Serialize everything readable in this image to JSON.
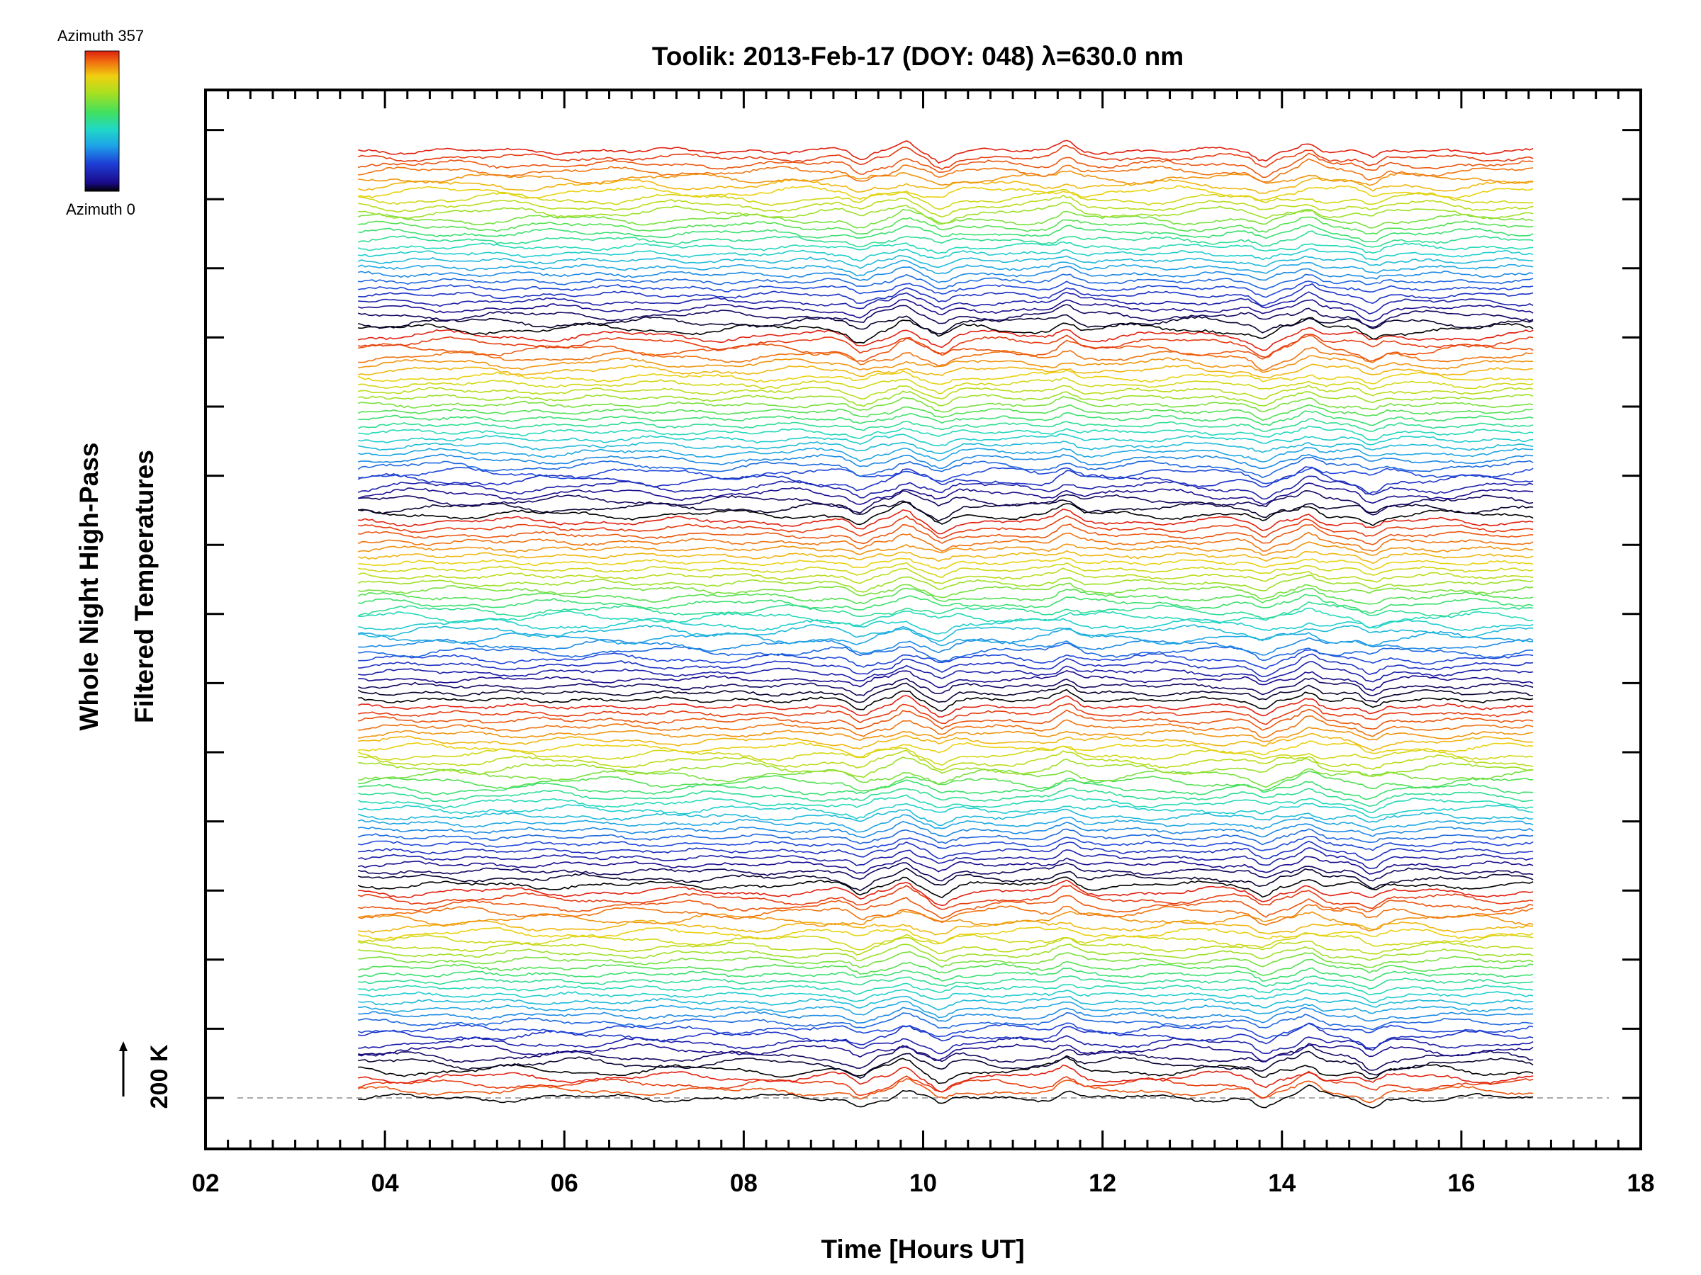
{
  "colors": {
    "background": "#ffffff",
    "axis": "#000000",
    "baseline": "#aaaaaa",
    "colormap": [
      "#000000",
      "#1a0a8a",
      "#1e40d8",
      "#1ea0e8",
      "#20d8c8",
      "#40e060",
      "#a8e020",
      "#f0d010",
      "#f07010",
      "#e02010"
    ]
  },
  "chart_data": {
    "type": "line",
    "title": "Toolik: 2013-Feb-17 (DOY: 048) λ=630.0 nm",
    "xlabel": "Time [Hours UT]",
    "ylabel": [
      "Whole Night High-Pass",
      "Filtered Temperatures"
    ],
    "xlim": [
      2,
      18
    ],
    "xticks": [
      "02",
      "04",
      "06",
      "08",
      "10",
      "12",
      "14",
      "16",
      "18"
    ],
    "x_range_data": [
      3.7,
      16.8
    ],
    "y_scale_bar": "200 K",
    "colorbar": {
      "top_label": "Azimuth 357",
      "bottom_label": "Azimuth 0",
      "colormap": "rainbow"
    },
    "series_count": 139,
    "common_events_hours_ut": [
      9.3,
      9.8,
      10.2,
      11.6,
      13.8,
      14.3,
      15.0
    ],
    "grid": false,
    "legend": "colorbar top-left"
  }
}
